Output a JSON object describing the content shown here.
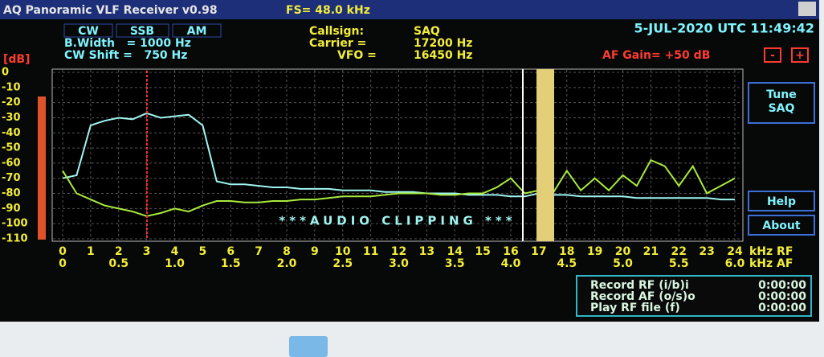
{
  "ui": {
    "window_title": "AQ Panoramic VLF Receiver v0.98",
    "sample_rate": "FS= 48.0 kHz",
    "modes": [
      "CW",
      "SSB",
      "AM"
    ],
    "bandwidth": "B.Width   = 1000 Hz",
    "cw_shift": "CW Shift =   750 Hz",
    "callsign_label": "Callsign:",
    "callsign": "SAQ",
    "carrier_label": "Carrier =",
    "carrier": "17200 Hz",
    "vfo_label": "VFO =",
    "vfo": "16450 Hz",
    "datetime": "5-JUL-2020 UTC 11:49:42",
    "af_gain": "AF Gain= +50 dB",
    "gain_down": "-",
    "gain_up": "+",
    "tune_button": [
      "Tune",
      "SAQ"
    ],
    "help_button": "Help",
    "about_button": "About",
    "record_rows": [
      [
        "Record RF (i/b)i",
        "0:00:00"
      ],
      [
        "Record AF (o/s)o",
        "0:00:00"
      ],
      [
        "Play RF file (f)",
        "0:00:00"
      ]
    ]
  },
  "chart_data": {
    "type": "line",
    "y_label": "[dB]",
    "x_label": "kHz RF",
    "x2_label": "kHz AF",
    "annotation": "***AUDIO CLIPPING ***",
    "x": [
      0,
      0.5,
      1,
      1.5,
      2,
      2.5,
      3,
      3.5,
      4,
      4.5,
      5,
      5.5,
      6,
      6.5,
      7,
      7.5,
      8,
      8.5,
      9,
      9.5,
      10,
      10.5,
      11,
      11.5,
      12,
      12.5,
      13,
      13.5,
      14,
      14.5,
      15,
      15.5,
      16,
      16.5,
      17,
      17.5,
      18,
      18.5,
      19,
      19.5,
      20,
      20.5,
      21,
      21.5,
      22,
      22.5,
      23,
      23.5,
      24
    ],
    "series": [
      {
        "color": "#9ff5f0",
        "values": [
          -70,
          -68,
          -35,
          -32,
          -30,
          -31,
          -27,
          -30,
          -29,
          -28,
          -35,
          -72,
          -74,
          -74,
          -75,
          -76,
          -76,
          -77,
          -77,
          -77,
          -78,
          -78,
          -78,
          -79,
          -79,
          -79,
          -80,
          -80,
          -80,
          -81,
          -81,
          -81,
          -82,
          -82,
          -80,
          -81,
          -81,
          -82,
          -82,
          -82,
          -82,
          -83,
          -83,
          -83,
          -83,
          -83,
          -83,
          -84,
          -84
        ]
      },
      {
        "color": "#a8ea3c",
        "values": [
          -65,
          -80,
          -84,
          -88,
          -90,
          -92,
          -95,
          -93,
          -90,
          -92,
          -88,
          -85,
          -85,
          -86,
          -86,
          -85,
          -85,
          -84,
          -84,
          -83,
          -82,
          -82,
          -82,
          -81,
          -80,
          -80,
          -80,
          -81,
          -81,
          -80,
          -80,
          -76,
          -70,
          -80,
          -78,
          -80,
          -65,
          -78,
          -70,
          -78,
          -68,
          -75,
          -58,
          -62,
          -75,
          -62,
          -80,
          -75,
          -70
        ]
      }
    ],
    "xlim": [
      0,
      24
    ],
    "xticks": [
      0,
      1,
      2,
      3,
      4,
      5,
      6,
      7,
      8,
      9,
      10,
      11,
      12,
      13,
      14,
      15,
      16,
      17,
      18,
      19,
      20,
      21,
      22,
      23,
      24
    ],
    "x2lim": [
      0,
      6
    ],
    "x2ticks": [
      0,
      0.5,
      {
        "value": 1,
        "label": "1.0"
      },
      1.5,
      {
        "value": 2,
        "label": "2.0"
      },
      2.5,
      {
        "value": 3,
        "label": "3.0"
      },
      3.5,
      {
        "value": 4,
        "label": "4.0"
      },
      4.5,
      {
        "value": 5,
        "label": "5.0"
      },
      5.5,
      {
        "value": 6,
        "label": "6.0"
      }
    ],
    "ylim": [
      -110,
      0
    ],
    "yticks": [
      0,
      -10,
      -20,
      -30,
      -40,
      -50,
      -60,
      -70,
      -80,
      -90,
      -100,
      -110
    ],
    "grid": true
  }
}
